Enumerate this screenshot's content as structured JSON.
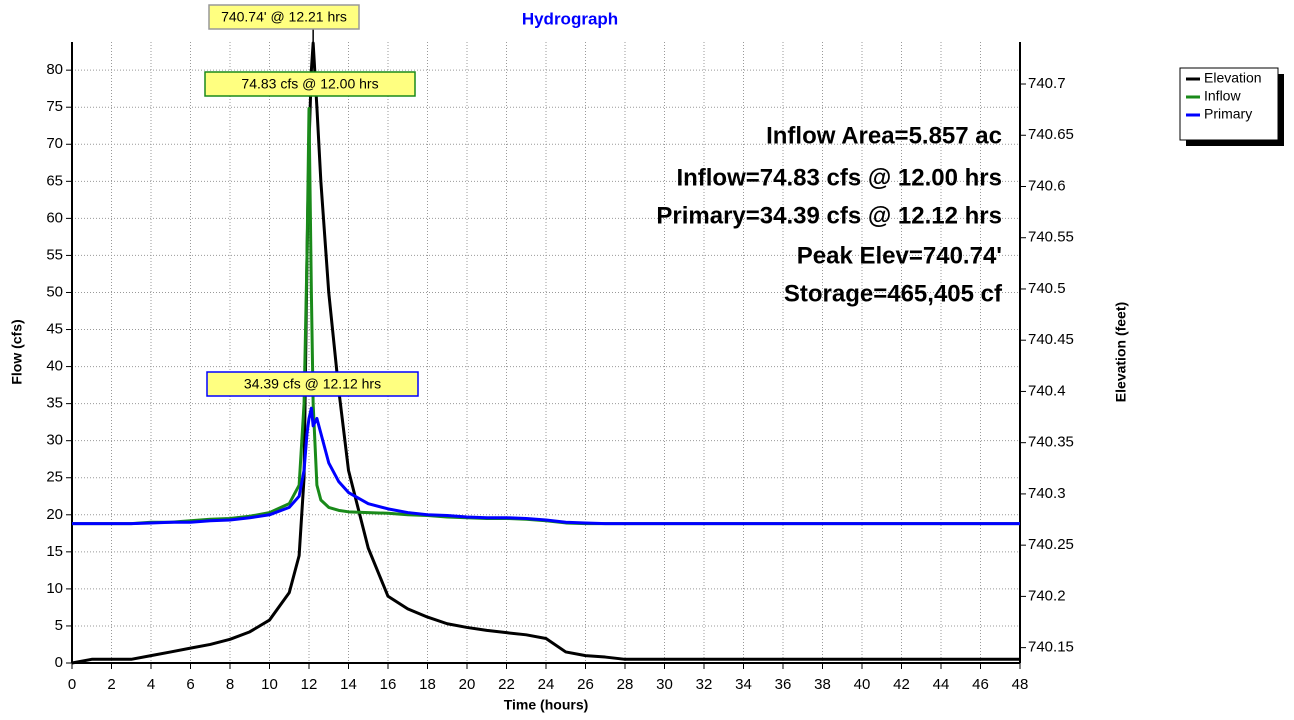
{
  "chart_data": {
    "type": "line",
    "title": "Hydrograph",
    "xlabel": "Time  (hours)",
    "ylabel": "Flow  (cfs)",
    "y2label": "Elevation (feet)",
    "x": [
      0,
      1,
      2,
      3,
      4,
      5,
      6,
      7,
      8,
      9,
      10,
      11,
      11.5,
      11.75,
      11.9,
      12,
      12.12,
      12.21,
      12.4,
      12.6,
      13,
      13.5,
      14,
      15,
      16,
      17,
      18,
      19,
      20,
      21,
      22,
      23,
      24,
      25,
      26,
      27,
      28,
      30,
      32,
      36,
      40,
      44,
      48
    ],
    "series": [
      {
        "name": "Elevation",
        "color": "#000000",
        "axis": "y2",
        "values": [
          740.135,
          740.1386,
          740.1386,
          740.1386,
          740.1422,
          740.1458,
          740.1495,
          740.1531,
          740.1581,
          740.1654,
          740.1769,
          740.2037,
          740.2398,
          740.3158,
          740.5327,
          740.6411,
          740.7134,
          740.74,
          740.6773,
          740.605,
          740.4965,
          740.4025,
          740.323,
          740.2471,
          740.2001,
          740.1878,
          740.1798,
          740.1733,
          740.1697,
          740.1668,
          740.1646,
          740.1625,
          740.1589,
          740.1458,
          740.1422,
          740.1408,
          740.1386,
          740.1386,
          740.1386,
          740.1386,
          740.1386,
          740.1386,
          740.1386
        ]
      },
      {
        "name": "Inflow",
        "color": "#1a8a1a",
        "axis": "y",
        "values": [
          18.8,
          18.8,
          18.8,
          18.8,
          19,
          19,
          19.2,
          19.4,
          19.5,
          19.8,
          20.3,
          21.5,
          24,
          35,
          55,
          74.83,
          50,
          35,
          24,
          22,
          21,
          20.6,
          20.4,
          20.3,
          20.2,
          20,
          19.9,
          19.7,
          19.6,
          19.5,
          19.5,
          19.4,
          19.2,
          18.9,
          18.8,
          18.8,
          18.8,
          18.8,
          18.8,
          18.8,
          18.8,
          18.8,
          18.8
        ]
      },
      {
        "name": "Primary",
        "color": "#0000ff",
        "axis": "y",
        "values": [
          18.8,
          18.8,
          18.8,
          18.8,
          18.9,
          19,
          19,
          19.2,
          19.3,
          19.6,
          20,
          21,
          22.5,
          26,
          31,
          33,
          34.39,
          32,
          33,
          31,
          27,
          24.5,
          23,
          21.5,
          20.8,
          20.3,
          20,
          19.9,
          19.7,
          19.6,
          19.6,
          19.5,
          19.3,
          19,
          18.9,
          18.8,
          18.8,
          18.8,
          18.8,
          18.8,
          18.8,
          18.8,
          18.8
        ]
      }
    ],
    "xlim": [
      0,
      48
    ],
    "xticks": [
      0,
      2,
      4,
      6,
      8,
      10,
      12,
      14,
      16,
      18,
      20,
      22,
      24,
      26,
      28,
      30,
      32,
      34,
      36,
      38,
      40,
      42,
      44,
      46,
      48
    ],
    "ylim": [
      0,
      83.8
    ],
    "yticks": [
      0,
      5,
      10,
      15,
      20,
      25,
      30,
      35,
      40,
      45,
      50,
      55,
      60,
      65,
      70,
      75,
      80
    ],
    "y2lim": [
      740.135,
      740.741
    ],
    "y2ticks": [
      740.15,
      740.2,
      740.25,
      740.3,
      740.35,
      740.4,
      740.45,
      740.5,
      740.55,
      740.6,
      740.65,
      740.7
    ],
    "grid": true,
    "legend": "top-right",
    "annotations": [
      "740.74' @ 12.21 hrs",
      "74.83 cfs @ 12.00 hrs",
      "34.39 cfs @ 12.12 hrs"
    ],
    "summary": [
      "Inflow Area=5.857 ac",
      "Inflow=74.83 cfs @ 12.00 hrs",
      "Primary=34.39 cfs @ 12.12 hrs",
      "Peak Elev=740.74'",
      "Storage=465,405 cf"
    ]
  }
}
